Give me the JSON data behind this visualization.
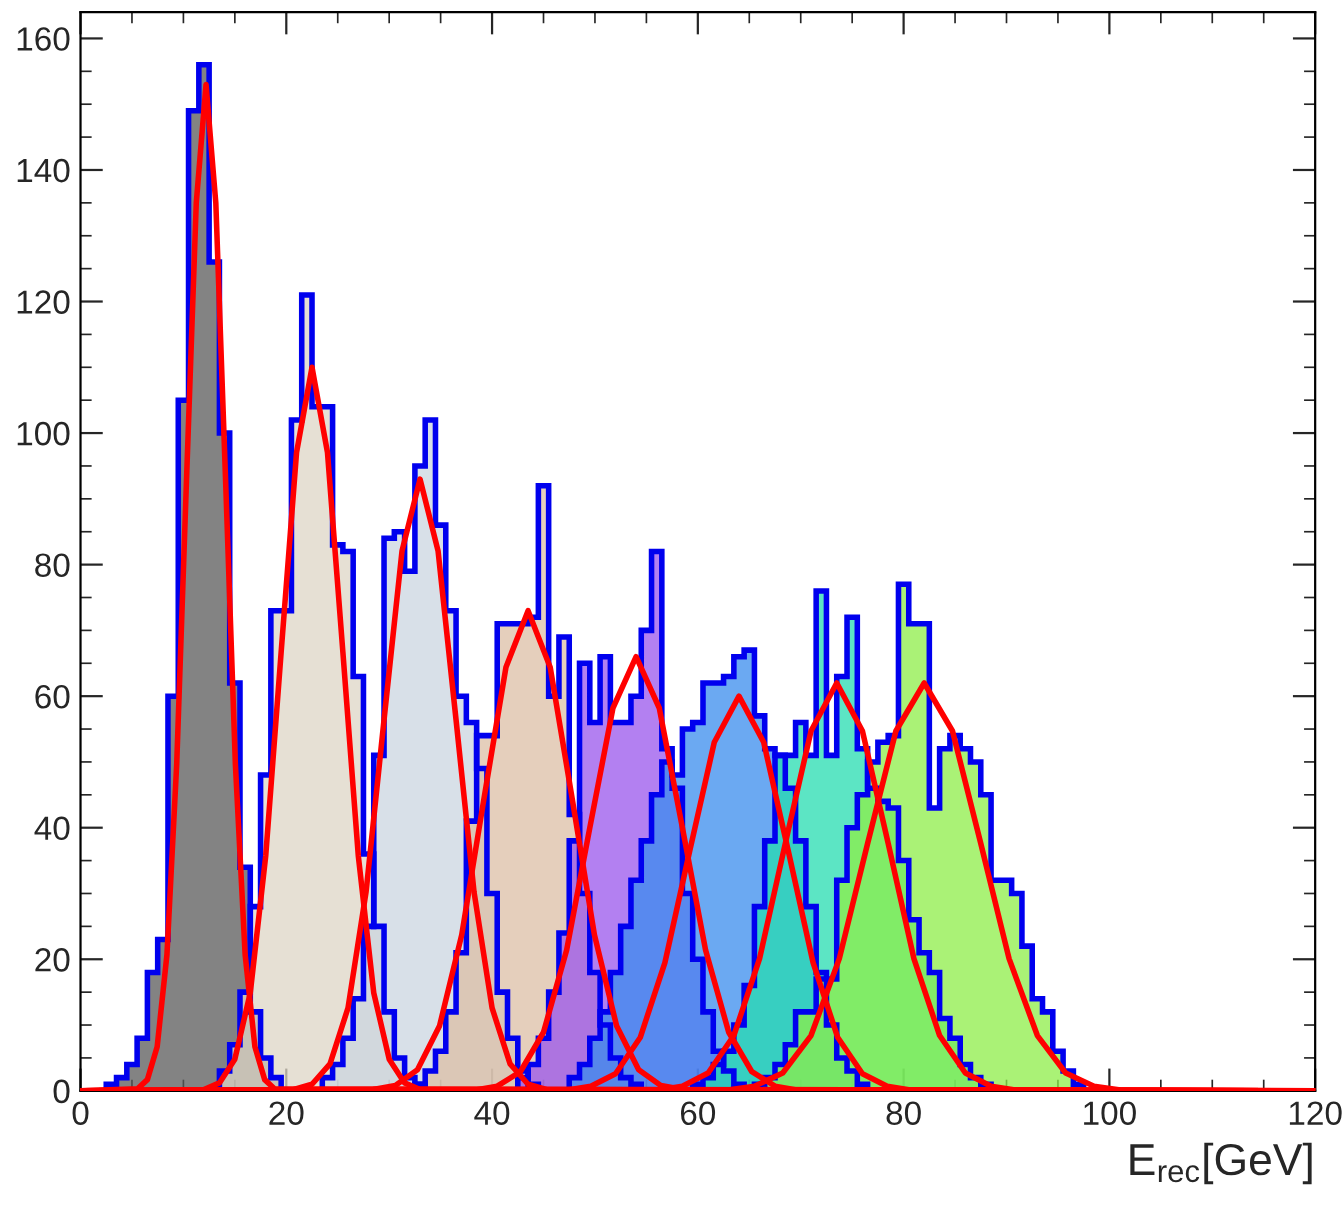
{
  "chart_data": {
    "type": "histogram",
    "xlabel": "E$_{rec}$[GeV]",
    "xlim": [
      0,
      120
    ],
    "xticks": [
      0,
      20,
      40,
      60,
      80,
      100,
      120
    ],
    "ylim": [
      0,
      164
    ],
    "yticks": [
      0,
      20,
      40,
      60,
      80,
      100,
      120,
      140,
      160
    ],
    "grid": false,
    "legend": false,
    "series": [
      {
        "color": "#5a5a5a",
        "bins": [
          2.5,
          3.5,
          4.5,
          5.5,
          6.5,
          7.5,
          8.5,
          9.5,
          10.5,
          11.5,
          12.5,
          13.5,
          14.5,
          15.5,
          16.5,
          17.5,
          18.5,
          19.5
        ],
        "values": [
          1,
          2,
          4,
          8,
          18,
          23,
          60,
          105,
          149,
          156,
          126,
          100,
          62,
          34,
          12,
          5,
          2
        ]
      },
      {
        "color": "#ddd5c5",
        "bins": [
          13.5,
          14.5,
          15.5,
          16.5,
          17.5,
          18.5,
          19.5,
          20.5,
          21.5,
          22.5,
          23.5,
          24.5,
          25.5,
          26.5,
          27.5,
          28.5,
          29.5,
          30.5,
          31.5,
          32.5,
          33.5
        ],
        "values": [
          3,
          7,
          15,
          28,
          48,
          73,
          73,
          102,
          121,
          104,
          104,
          83,
          82,
          63,
          36,
          25,
          12,
          5,
          2,
          1
        ]
      },
      {
        "color": "#cbd6e0",
        "bins": [
          23.5,
          24.5,
          25.5,
          26.5,
          27.5,
          28.5,
          29.5,
          30.5,
          31.5,
          32.5,
          33.5,
          34.5,
          35.5,
          36.5,
          37.5,
          38.5,
          39.5,
          40.5,
          41.5,
          42.5,
          43.5,
          44.5
        ],
        "values": [
          2,
          4,
          8,
          14,
          25,
          51,
          84,
          85,
          79,
          95,
          102,
          86,
          73,
          60,
          56,
          49,
          30,
          15,
          8,
          3,
          1
        ]
      },
      {
        "color": "#dcbfa5",
        "bins": [
          32.5,
          33.5,
          34.5,
          35.5,
          36.5,
          37.5,
          38.5,
          39.5,
          40.5,
          41.5,
          42.5,
          43.5,
          44.5,
          45.5,
          46.5,
          47.5,
          48.5,
          49.5,
          50.5,
          51.5,
          52.5,
          53.5,
          54.5
        ],
        "values": [
          1,
          3,
          6,
          12,
          21,
          41,
          54,
          54,
          71,
          71,
          71,
          72,
          92,
          60,
          69,
          42,
          30,
          18,
          10,
          5,
          2,
          1
        ]
      },
      {
        "color": "#9a55ec",
        "bins": [
          42.5,
          43.5,
          44.5,
          45.5,
          46.5,
          47.5,
          48.5,
          49.5,
          50.5,
          51.5,
          52.5,
          53.5,
          54.5,
          55.5,
          56.5,
          57.5,
          58.5,
          59.5,
          60.5,
          61.5,
          62.5,
          63.5,
          64.5
        ],
        "values": [
          2,
          4,
          8,
          15,
          24,
          38,
          65,
          56,
          66,
          56,
          56,
          60,
          70,
          82,
          52,
          46,
          30,
          20,
          12,
          6,
          3,
          1
        ]
      },
      {
        "color": "#3a8ced",
        "bins": [
          47.5,
          48.5,
          49.5,
          50.5,
          51.5,
          52.5,
          53.5,
          54.5,
          55.5,
          56.5,
          57.5,
          58.5,
          59.5,
          60.5,
          61.5,
          62.5,
          63.5,
          64.5,
          65.5,
          66.5,
          67.5,
          68.5,
          69.5,
          70.5,
          71.5,
          72.5,
          73.5,
          74.5,
          75.5,
          76.5
        ],
        "values": [
          2,
          4,
          8,
          12,
          18,
          25,
          32,
          38,
          45,
          50,
          48,
          55,
          56,
          62,
          62,
          63,
          66,
          67,
          57,
          52,
          51,
          46,
          38,
          28,
          18,
          10,
          5,
          3,
          1
        ]
      },
      {
        "color": "#25dcb0",
        "bins": [
          59.5,
          60.5,
          61.5,
          62.5,
          63.5,
          64.5,
          65.5,
          66.5,
          67.5,
          68.5,
          69.5,
          70.5,
          71.5,
          72.5,
          73.5,
          74.5,
          75.5,
          76.5,
          77.5,
          78.5,
          79.5,
          80.5,
          81.5,
          82.5,
          83.5,
          84.5,
          85.5,
          86.5,
          87.5,
          88.5
        ],
        "values": [
          1,
          2,
          4,
          6,
          10,
          16,
          28,
          38,
          51,
          51,
          56,
          51,
          76,
          51,
          63,
          72,
          52,
          46,
          44,
          43,
          35,
          26,
          21,
          18,
          11,
          8,
          4,
          2,
          1
        ]
      },
      {
        "color": "#8eee48",
        "bins": [
          65.5,
          66.5,
          67.5,
          68.5,
          69.5,
          70.5,
          71.5,
          72.5,
          73.5,
          74.5,
          75.5,
          76.5,
          77.5,
          78.5,
          79.5,
          80.5,
          81.5,
          82.5,
          83.5,
          84.5,
          85.5,
          86.5,
          87.5,
          88.5,
          89.5,
          90.5,
          91.5,
          92.5,
          93.5,
          94.5,
          95.5,
          96.5,
          97.5
        ],
        "values": [
          1,
          2,
          4,
          7,
          12,
          12,
          17,
          17,
          32,
          40,
          45,
          50,
          53,
          54,
          77,
          71,
          71,
          43,
          52,
          54,
          52,
          50,
          45,
          32,
          32,
          30,
          22,
          14,
          12,
          6,
          3,
          1
        ]
      },
      {
        "type": "line",
        "color": "#ff0000",
        "x": [
          0,
          5.55,
          6.5,
          7.45,
          8.4,
          9.35,
          10.3,
          11.25,
          12.2,
          13.15,
          14.1,
          15.05,
          16.0,
          16.95,
          17.9,
          18.85,
          120
        ],
        "values": [
          0,
          0.3,
          1.7,
          6.7,
          20.7,
          49.7,
          92.8,
          135,
          153,
          135,
          92.8,
          49.7,
          20.7,
          6.7,
          1.7,
          0.3,
          0
        ]
      },
      {
        "type": "line",
        "color": "#ff0000",
        "x": [
          0,
          12,
          13.5,
          15,
          16.5,
          18,
          19.5,
          21,
          22.5,
          24,
          25.5,
          27,
          28.5,
          30,
          31.5,
          33,
          120
        ],
        "values": [
          0,
          0.2,
          1.2,
          4.8,
          14.9,
          35.7,
          66.7,
          97.1,
          110,
          97.1,
          66.7,
          35.7,
          14.9,
          4.8,
          1.2,
          0.2,
          0
        ]
      },
      {
        "type": "line",
        "color": "#ff0000",
        "x": [
          0,
          20.75,
          22.5,
          24.25,
          26,
          27.75,
          29.5,
          31.25,
          33,
          34.75,
          36.5,
          38.25,
          40,
          41.75,
          43.5,
          45.25,
          120
        ],
        "values": [
          0,
          0.2,
          1.0,
          4.1,
          12.6,
          30.2,
          56.4,
          82.1,
          93,
          82.1,
          56.4,
          30.2,
          12.6,
          4.1,
          1.0,
          0.2,
          0
        ]
      },
      {
        "type": "line",
        "color": "#ff0000",
        "x": [
          0,
          28.45,
          30.6,
          32.75,
          34.9,
          37.05,
          39.2,
          41.35,
          43.5,
          45.65,
          47.8,
          49.95,
          52.1,
          54.25,
          56.4,
          58.55,
          120
        ],
        "values": [
          0,
          0.2,
          0.8,
          3.2,
          9.9,
          23.7,
          44.3,
          64.4,
          73,
          64.4,
          44.3,
          23.7,
          9.9,
          3.2,
          0.8,
          0.2,
          0
        ]
      },
      {
        "type": "line",
        "color": "#ff0000",
        "x": [
          0,
          38.25,
          40.5,
          42.75,
          45,
          47.25,
          49.5,
          51.75,
          54,
          56.25,
          58.5,
          60.75,
          63,
          65.25,
          67.5,
          69.75,
          120
        ],
        "values": [
          0,
          0.1,
          0.7,
          2.9,
          8.9,
          21.4,
          40,
          58.2,
          66,
          58.2,
          40,
          21.4,
          8.9,
          2.9,
          0.7,
          0.1,
          0
        ]
      },
      {
        "type": "line",
        "color": "#ff0000",
        "x": [
          0,
          47.2,
          49.6,
          52,
          54.4,
          56.8,
          59.2,
          61.6,
          64,
          66.4,
          68.8,
          71.2,
          73.6,
          76,
          78.4,
          80.8,
          120
        ],
        "values": [
          0,
          0.1,
          0.7,
          2.6,
          8.1,
          19.5,
          36.4,
          53,
          60,
          53,
          36.4,
          19.5,
          8.1,
          2.6,
          0.7,
          0.1,
          0
        ]
      },
      {
        "type": "line",
        "color": "#ff0000",
        "x": [
          0,
          56,
          58.5,
          61,
          63.5,
          66,
          68.5,
          71,
          73.5,
          76,
          78.5,
          81,
          83.5,
          86,
          88.5,
          91,
          120
        ],
        "values": [
          0,
          0.1,
          0.7,
          2.7,
          8.4,
          20.1,
          37.6,
          54.7,
          62,
          54.7,
          37.6,
          20.1,
          8.4,
          2.7,
          0.7,
          0.1,
          0
        ]
      },
      {
        "type": "line",
        "color": "#ff0000",
        "x": [
          0,
          62.75,
          65.5,
          68.25,
          71,
          73.75,
          76.5,
          79.25,
          82,
          84.75,
          87.5,
          90.25,
          93,
          95.75,
          98.5,
          101.25,
          120
        ],
        "values": [
          0,
          0.1,
          0.7,
          2.7,
          8.4,
          20.1,
          37.6,
          54.7,
          62,
          54.7,
          37.6,
          20.1,
          8.4,
          2.7,
          0.7,
          0.1,
          0
        ]
      }
    ]
  }
}
